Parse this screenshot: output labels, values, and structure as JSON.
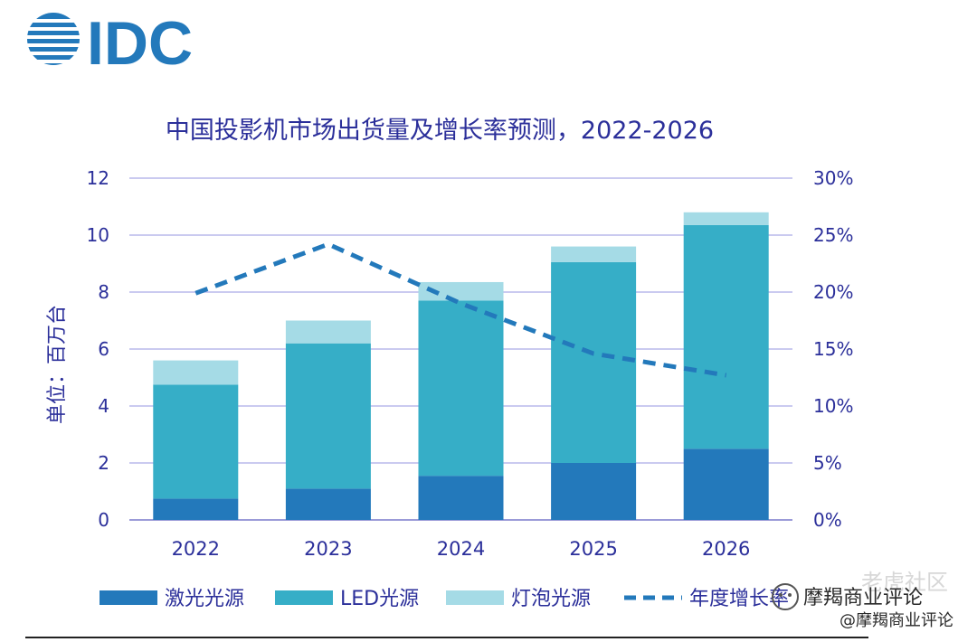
{
  "logo": {
    "text": "IDC"
  },
  "chart_data": {
    "type": "bar",
    "stacked": true,
    "title": "中国投影机市场出货量及增长率预测，2022-2026",
    "ylabel": "单位：百万台",
    "xlabel": "",
    "categories": [
      "2022",
      "2023",
      "2024",
      "2025",
      "2026"
    ],
    "ylim": [
      0,
      12
    ],
    "yticks": [
      "0",
      "2",
      "4",
      "6",
      "8",
      "10",
      "12"
    ],
    "y2lim": [
      0,
      30
    ],
    "y2ticks": [
      "0%",
      "5%",
      "10%",
      "15%",
      "20%",
      "25%",
      "30%"
    ],
    "grid": true,
    "legend_position": "bottom",
    "series": [
      {
        "name": "激光光源",
        "color": "#2379bb",
        "values": [
          0.75,
          1.1,
          1.55,
          2.0,
          2.5
        ]
      },
      {
        "name": "LED光源",
        "color": "#36aec7",
        "values": [
          4.0,
          5.1,
          6.15,
          7.05,
          7.85
        ]
      },
      {
        "name": "灯泡光源",
        "color": "#a5dbe6",
        "values": [
          0.85,
          0.8,
          0.65,
          0.55,
          0.45
        ]
      }
    ],
    "line_series": {
      "name": "年度增长率",
      "axis": "right",
      "color": "#2379bb",
      "style": "dashed",
      "values": [
        19.9,
        24.2,
        19.0,
        14.6,
        12.7
      ]
    }
  },
  "watermark": {
    "primary": "摩羯商业评论",
    "secondary": "@摩羯商业评论",
    "ghost": "老虎社区"
  }
}
